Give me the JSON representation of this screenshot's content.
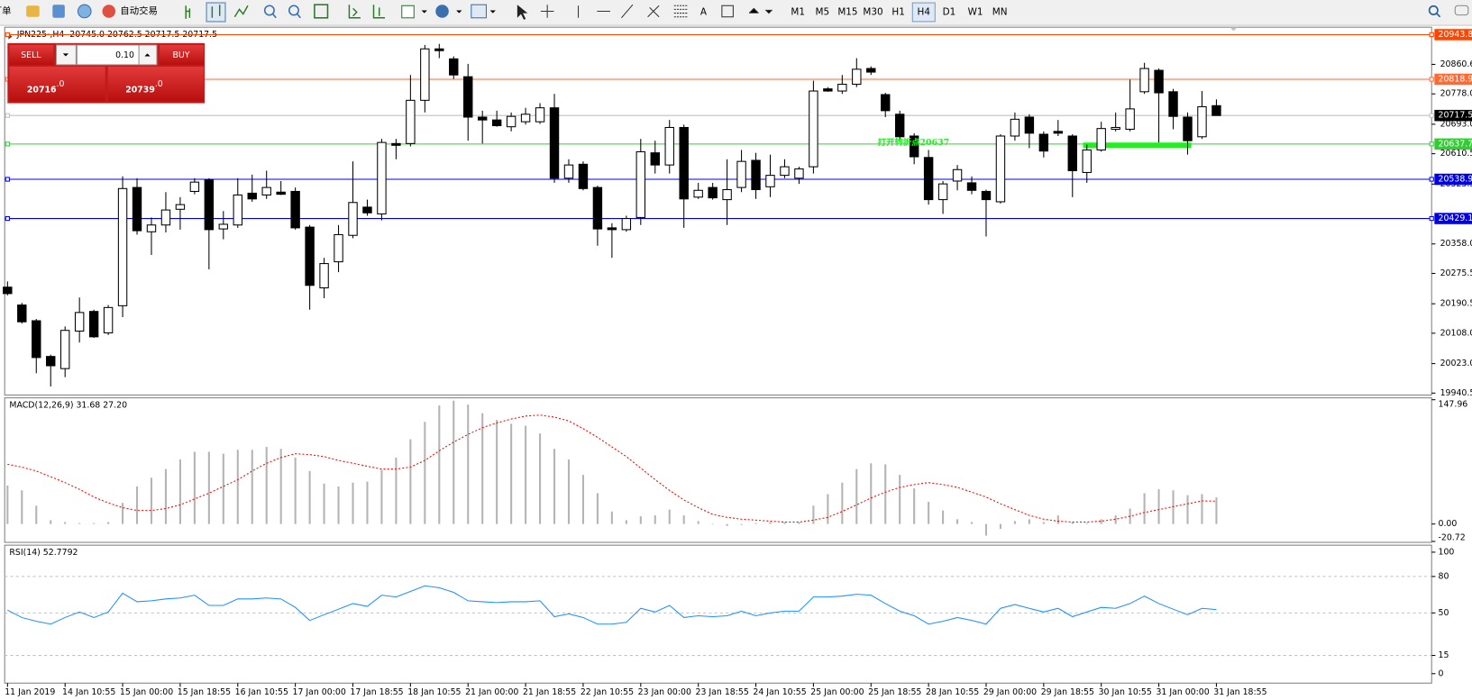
{
  "toolbar": {
    "order": "订单",
    "auto_trade": "自动交易",
    "text_tool": "A",
    "timeframes": [
      "M1",
      "M5",
      "M15",
      "M30",
      "H1",
      "H4",
      "D1",
      "W1",
      "MN"
    ],
    "active_timeframe": "H4"
  },
  "trade_panel": {
    "sell": "SELL",
    "buy": "BUY",
    "lot": "0.10",
    "sell_price_small": "20716",
    "sell_price_large": ".0",
    "buy_price_small": "20739",
    "buy_price_large": ".0"
  },
  "chart_data": {
    "type": "candlestick",
    "title": "JPN225-,H4  20745.0 20762.5 20717.5 20717.5",
    "categories": [
      "11 Jan 2019",
      null,
      null,
      null,
      "14 Jan 10:55",
      null,
      null,
      null,
      "15 Jan 00:00",
      null,
      null,
      null,
      "15 Jan 18:55",
      null,
      null,
      null,
      "16 Jan 10:55",
      null,
      null,
      null,
      "17 Jan 00:00",
      null,
      null,
      null,
      "17 Jan 18:55",
      null,
      null,
      null,
      "18 Jan 10:55",
      null,
      null,
      null,
      "21 Jan 00:00",
      null,
      null,
      null,
      "21 Jan 18:55",
      null,
      null,
      null,
      "22 Jan 10:55",
      null,
      null,
      null,
      "23 Jan 00:00",
      null,
      null,
      null,
      "23 Jan 18:55",
      null,
      null,
      null,
      "24 Jan 10:55",
      null,
      null,
      null,
      "25 Jan 00:00",
      null,
      null,
      null,
      "25 Jan 18:55",
      null,
      null,
      null,
      "28 Jan 10:55",
      null,
      null,
      null,
      "29 Jan 00:00",
      null,
      null,
      null,
      "29 Jan 18:55",
      null,
      null,
      null,
      "30 Jan 10:55",
      null,
      null,
      null,
      "31 Jan 00:00",
      null,
      null,
      null,
      "31 Jan 18:55"
    ],
    "open": [
      20237,
      20187,
      20143,
      20043,
      20009,
      20114,
      20169,
      20109,
      20185,
      20516,
      20392,
      20411,
      20455,
      20505,
      20537,
      20400,
      20411,
      20500,
      20495,
      20503,
      20505,
      20405,
      20235,
      20308,
      20382,
      20461,
      20442,
      20639,
      20639,
      20760,
      20904,
      20876,
      20826,
      20713,
      20705,
      20686,
      20700,
      20700,
      20739,
      20542,
      20581,
      20516,
      20403,
      20398,
      20432,
      20613,
      20579,
      20684,
      20489,
      20516,
      20482,
      20516,
      20592,
      20518,
      20550,
      20542,
      20574,
      20792,
      20786,
      20805,
      20849,
      20776,
      20721,
      20660,
      20600,
      20482,
      20534,
      20529,
      20505,
      20476,
      20660,
      20713,
      20665,
      20673,
      20660,
      20558,
      20621,
      20679,
      20679,
      20784,
      20844,
      20784,
      20713,
      20658,
      20745
    ],
    "high": [
      20253,
      20193,
      20148,
      20048,
      20127,
      20208,
      20174,
      20187,
      20547,
      20542,
      20432,
      20503,
      20489,
      20542,
      20542,
      20450,
      20542,
      20552,
      20563,
      20534,
      20516,
      20411,
      20319,
      20411,
      20589,
      20482,
      20652,
      20652,
      20831,
      20915,
      20918,
      20883,
      20862,
      20731,
      20731,
      20726,
      20739,
      20752,
      20778,
      20595,
      20589,
      20521,
      20416,
      20437,
      20652,
      20647,
      20705,
      20692,
      20529,
      20529,
      20595,
      20621,
      20613,
      20608,
      20595,
      20574,
      20815,
      20797,
      20831,
      20878,
      20855,
      20781,
      20731,
      20668,
      20621,
      20534,
      20579,
      20547,
      20510,
      20665,
      20726,
      20721,
      20673,
      20705,
      20665,
      20636,
      20700,
      20726,
      20818,
      20865,
      20849,
      20792,
      20726,
      20786,
      20762.5
    ],
    "low": [
      20214,
      20135,
      19996,
      19959,
      19985,
      20082,
      20095,
      20103,
      20153,
      20384,
      20327,
      20390,
      20398,
      20497,
      20287,
      20371,
      20403,
      20476,
      20484,
      20495,
      20398,
      20174,
      20206,
      20279,
      20374,
      20437,
      20424,
      20595,
      20631,
      20726,
      20878,
      20820,
      20647,
      20639,
      20686,
      20673,
      20692,
      20694,
      20529,
      20529,
      20508,
      20353,
      20319,
      20392,
      20411,
      20555,
      20555,
      20403,
      20484,
      20482,
      20411,
      20503,
      20484,
      20489,
      20542,
      20526,
      20555,
      20784,
      20778,
      20797,
      20831,
      20713,
      20647,
      20581,
      20468,
      20442,
      20508,
      20497,
      20379,
      20471,
      20647,
      20626,
      20600,
      20660,
      20489,
      20529,
      20616,
      20673,
      20673,
      20778,
      20642,
      20679,
      20608,
      20652,
      20717.5
    ],
    "close": [
      20219,
      20140,
      20040,
      20017,
      20116,
      20166,
      20098,
      20180,
      20513,
      20395,
      20411,
      20453,
      20468,
      20531,
      20398,
      20413,
      20495,
      20484,
      20516,
      20497,
      20403,
      20242,
      20303,
      20384,
      20474,
      20445,
      20642,
      20634,
      20760,
      20904,
      20899,
      20831,
      20713,
      20705,
      20689,
      20715,
      20721,
      20739,
      20542,
      20579,
      20513,
      20400,
      20398,
      20429,
      20616,
      20579,
      20684,
      20484,
      20508,
      20487,
      20510,
      20589,
      20510,
      20550,
      20574,
      20568,
      20786,
      20786,
      20805,
      20847,
      20839,
      20731,
      20658,
      20602,
      20482,
      20526,
      20566,
      20508,
      20482,
      20660,
      20707,
      20668,
      20618,
      20668,
      20563,
      20621,
      20681,
      20684,
      20736,
      20849,
      20781,
      20715,
      20647,
      20742,
      20717.5
    ],
    "up_color": "#ffffff",
    "down_color": "#000000",
    "ylim": [
      19935,
      20962
    ],
    "yticks": [
      20860.6,
      {
        "value": 20778,
        "label": "20778.0"
      },
      {
        "value": 20693,
        "label": "20693.0"
      },
      20610.5,
      20525.5,
      {
        "value": 20358,
        "label": "20358.0"
      },
      20275.5,
      20190.5,
      {
        "value": 20108,
        "label": "20108.0"
      },
      {
        "value": 20023,
        "label": "20023.0"
      },
      19940.5
    ],
    "price_lines": [
      {
        "value": 20943.8,
        "color": "#ff4500"
      },
      {
        "value": 20818.9,
        "color": "#ff6a33"
      },
      {
        "value": 20637.7,
        "color": "#32cd32"
      },
      {
        "value": 20538.9,
        "color": "#0000e0"
      },
      {
        "value": 20429.1,
        "color": "#0000e0"
      }
    ],
    "bid_line": {
      "value": 20717.5,
      "color": "#c0c0c0"
    },
    "annotation": {
      "text": "打开转折点20637",
      "color": "#22ee22"
    },
    "highlight_level": 20634,
    "macd": {
      "label": "MACD(12,26,9) 31.68 27.20",
      "hist_color": "#b4b4b4",
      "signal_color": "#ff0000",
      "ylim": [
        -20.72,
        147.96
      ],
      "yticks": [
        147.96,
        {
          "value": 0,
          "label": "0.00"
        },
        -20.72
      ],
      "histogram": [
        45.9,
        40.1,
        21.8,
        4.6,
        2.3,
        1.1,
        1.1,
        2.3,
        25.2,
        44.7,
        55.1,
        65.4,
        76.8,
        86.0,
        86.0,
        83.7,
        88.3,
        88.3,
        91.8,
        89.5,
        79.1,
        63.1,
        48.2,
        44.7,
        49.3,
        50.5,
        64.2,
        79.1,
        100.9,
        121.6,
        141.1,
        146.8,
        142.2,
        131.9,
        123.9,
        119.3,
        117.0,
        107.8,
        89.5,
        76.8,
        58.5,
        36.7,
        14.9,
        4.6,
        9.2,
        10.3,
        17.2,
        10.3,
        3.4,
        0.5,
        -2.3,
        -1.1,
        1.1,
        2.3,
        2.3,
        2.3,
        21.8,
        35.6,
        49.3,
        65.4,
        72.3,
        71.1,
        58.5,
        42.4,
        26.4,
        16.1,
        5.7,
        2.3,
        -13.8,
        -5.7,
        3.4,
        5.7,
        2.3,
        10.3,
        2.3,
        1.1,
        5.7,
        10.3,
        18.4,
        36.7,
        41.3,
        40.1,
        34.4,
        35.6,
        31.68
      ],
      "signal": [
        71.1,
        67.7,
        63.1,
        56.2,
        49.3,
        41.3,
        32.1,
        25.2,
        19.5,
        16.1,
        16.1,
        18.4,
        22.9,
        29.8,
        36.7,
        44.7,
        52.8,
        63.1,
        72.3,
        79.1,
        83.7,
        82.6,
        80.3,
        75.7,
        72.3,
        68.8,
        65.4,
        65.4,
        67.7,
        75.7,
        87.2,
        97.5,
        106.7,
        114.7,
        120.4,
        125.0,
        128.5,
        129.6,
        127.3,
        122.7,
        113.6,
        103.2,
        91.8,
        80.3,
        66.5,
        52.8,
        40.1,
        28.7,
        19.5,
        11.5,
        8.0,
        5.7,
        4.6,
        3.4,
        2.3,
        2.3,
        4.6,
        8.0,
        14.9,
        22.9,
        31.0,
        37.9,
        43.6,
        47.0,
        49.3,
        47.0,
        43.6,
        37.9,
        32.1,
        24.1,
        17.2,
        10.3,
        5.7,
        3.4,
        2.3,
        2.3,
        3.4,
        5.7,
        9.2,
        13.8,
        17.2,
        20.6,
        24.1,
        27.5,
        27.2
      ]
    },
    "rsi": {
      "label": "RSI(14) 52.7792",
      "color": "#1e90ff",
      "ylim": [
        -7,
        105
      ],
      "yticks": [
        100,
        80,
        50,
        15,
        0
      ],
      "levels": [
        80,
        50,
        15
      ],
      "values": [
        52.3,
        46.2,
        43.1,
        40.8,
        46.2,
        50.8,
        46.2,
        50.8,
        66.2,
        59.2,
        60.0,
        61.5,
        62.3,
        64.6,
        56.2,
        56.2,
        61.5,
        61.5,
        62.3,
        61.5,
        54.6,
        43.8,
        48.5,
        53.1,
        57.7,
        55.4,
        64.6,
        63.1,
        67.7,
        72.3,
        70.8,
        66.9,
        60.0,
        59.2,
        58.5,
        59.2,
        59.2,
        60.0,
        46.9,
        49.2,
        46.2,
        40.8,
        40.8,
        42.3,
        53.8,
        50.8,
        56.2,
        46.2,
        47.7,
        46.9,
        47.7,
        51.5,
        47.7,
        50.0,
        51.5,
        51.5,
        63.1,
        63.1,
        63.8,
        65.4,
        64.6,
        57.7,
        51.5,
        47.7,
        40.8,
        43.1,
        46.2,
        43.8,
        40.8,
        53.8,
        56.9,
        53.8,
        50.8,
        53.8,
        46.9,
        50.8,
        54.6,
        53.8,
        57.7,
        63.8,
        57.7,
        53.1,
        48.5,
        53.8,
        52.7792
      ]
    }
  }
}
